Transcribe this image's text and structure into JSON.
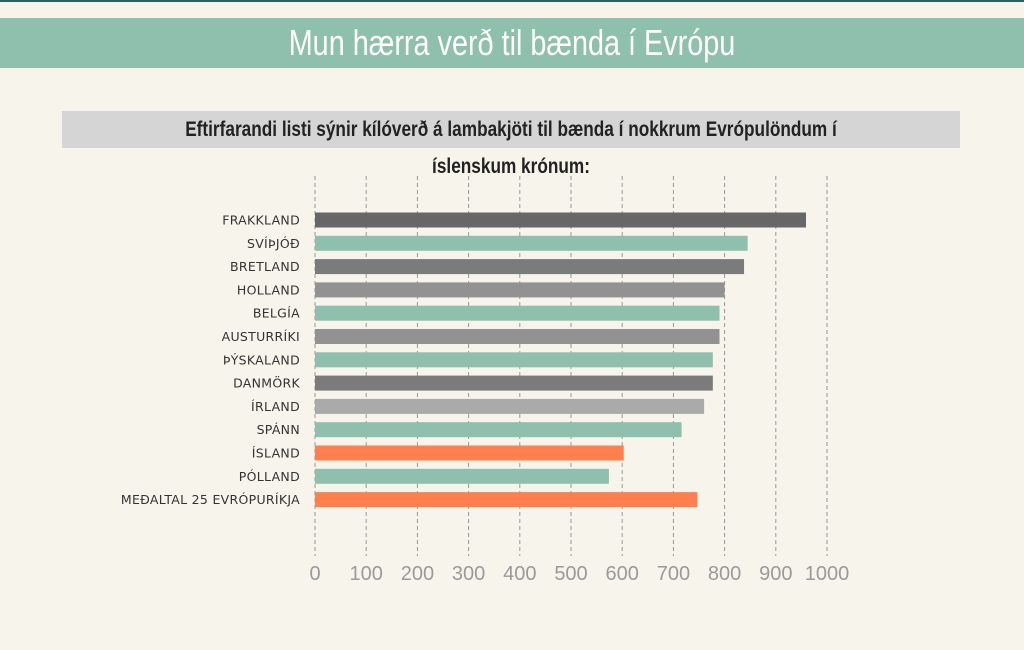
{
  "header": {
    "title": "Mun hærra verð til bænda í Evrópu"
  },
  "chart_data": {
    "type": "bar",
    "orientation": "horizontal",
    "title": "Mun hærra verð til bænda í Evrópu",
    "subtitle": "Eftirfarandi listi sýnir kílóverð á lambakjöti til bænda í nokkrum Evrópulöndum í íslenskum krónum:",
    "categories": [
      "FRAKKLAND",
      "SVÍÞJÓÐ",
      "BRETLAND",
      "HOLLAND",
      "BELGÍA",
      "AUSTURRÍKI",
      "ÞÝSKALAND",
      "DANMÖRK",
      "ÍRLAND",
      "SPÁNN",
      "ÍSLAND",
      "PÓLLAND",
      "MEÐALTAL 25 EVRÓPURÍKJA"
    ],
    "values": [
      959,
      845,
      838,
      800,
      790,
      790,
      777,
      777,
      760,
      716,
      603,
      574,
      747
    ],
    "colors": [
      "#676767",
      "#8fbfad",
      "#7b7b7b",
      "#929292",
      "#8fbfad",
      "#929292",
      "#8fbfad",
      "#7b7b7b",
      "#aaaaaa",
      "#8fbfad",
      "#ff7f4f",
      "#8fbfad",
      "#ff7f4f"
    ],
    "xlim": [
      0,
      1000
    ],
    "xticks": [
      0,
      100,
      200,
      300,
      400,
      500,
      600,
      700,
      800,
      900,
      1000
    ],
    "grid": true
  }
}
